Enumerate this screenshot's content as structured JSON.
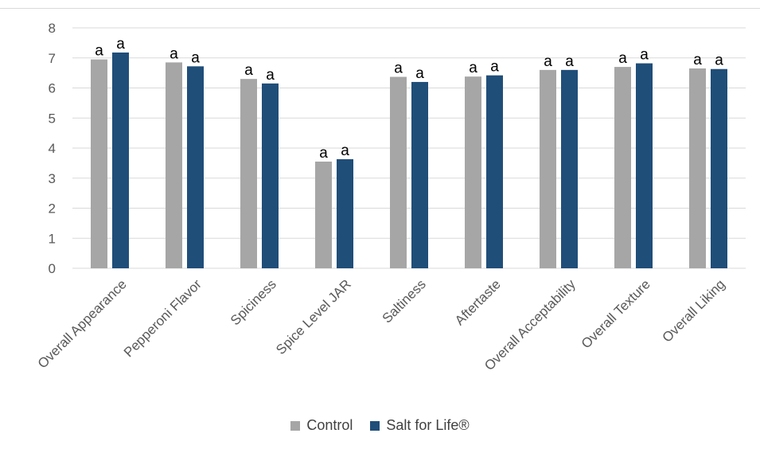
{
  "chart_data": {
    "type": "bar",
    "title": "",
    "xlabel": "",
    "ylabel": "",
    "ylim": [
      0,
      8
    ],
    "yticks": [
      0,
      1,
      2,
      3,
      4,
      5,
      6,
      7,
      8
    ],
    "grid": true,
    "legend_position": "bottom",
    "categories": [
      "Overall Appearance",
      "Pepperoni Flavor",
      "Spiciness",
      "Spice Level JAR",
      "Saltiness",
      "Aftertaste",
      "Overall Acceptability",
      "Overall Texture",
      "Overall Liking"
    ],
    "series": [
      {
        "name": "Control",
        "color": "#a6a6a6",
        "values": [
          6.95,
          6.85,
          6.3,
          3.55,
          6.37,
          6.38,
          6.6,
          6.7,
          6.65
        ],
        "labels": [
          "a",
          "a",
          "a",
          "a",
          "a",
          "a",
          "a",
          "a",
          "a"
        ]
      },
      {
        "name": "Salt for Life®",
        "color": "#1f4e79",
        "values": [
          7.18,
          6.72,
          6.15,
          3.63,
          6.2,
          6.42,
          6.6,
          6.82,
          6.63
        ],
        "labels": [
          "a",
          "a",
          "a",
          "a",
          "a",
          "a",
          "a",
          "a",
          "a"
        ]
      }
    ]
  }
}
